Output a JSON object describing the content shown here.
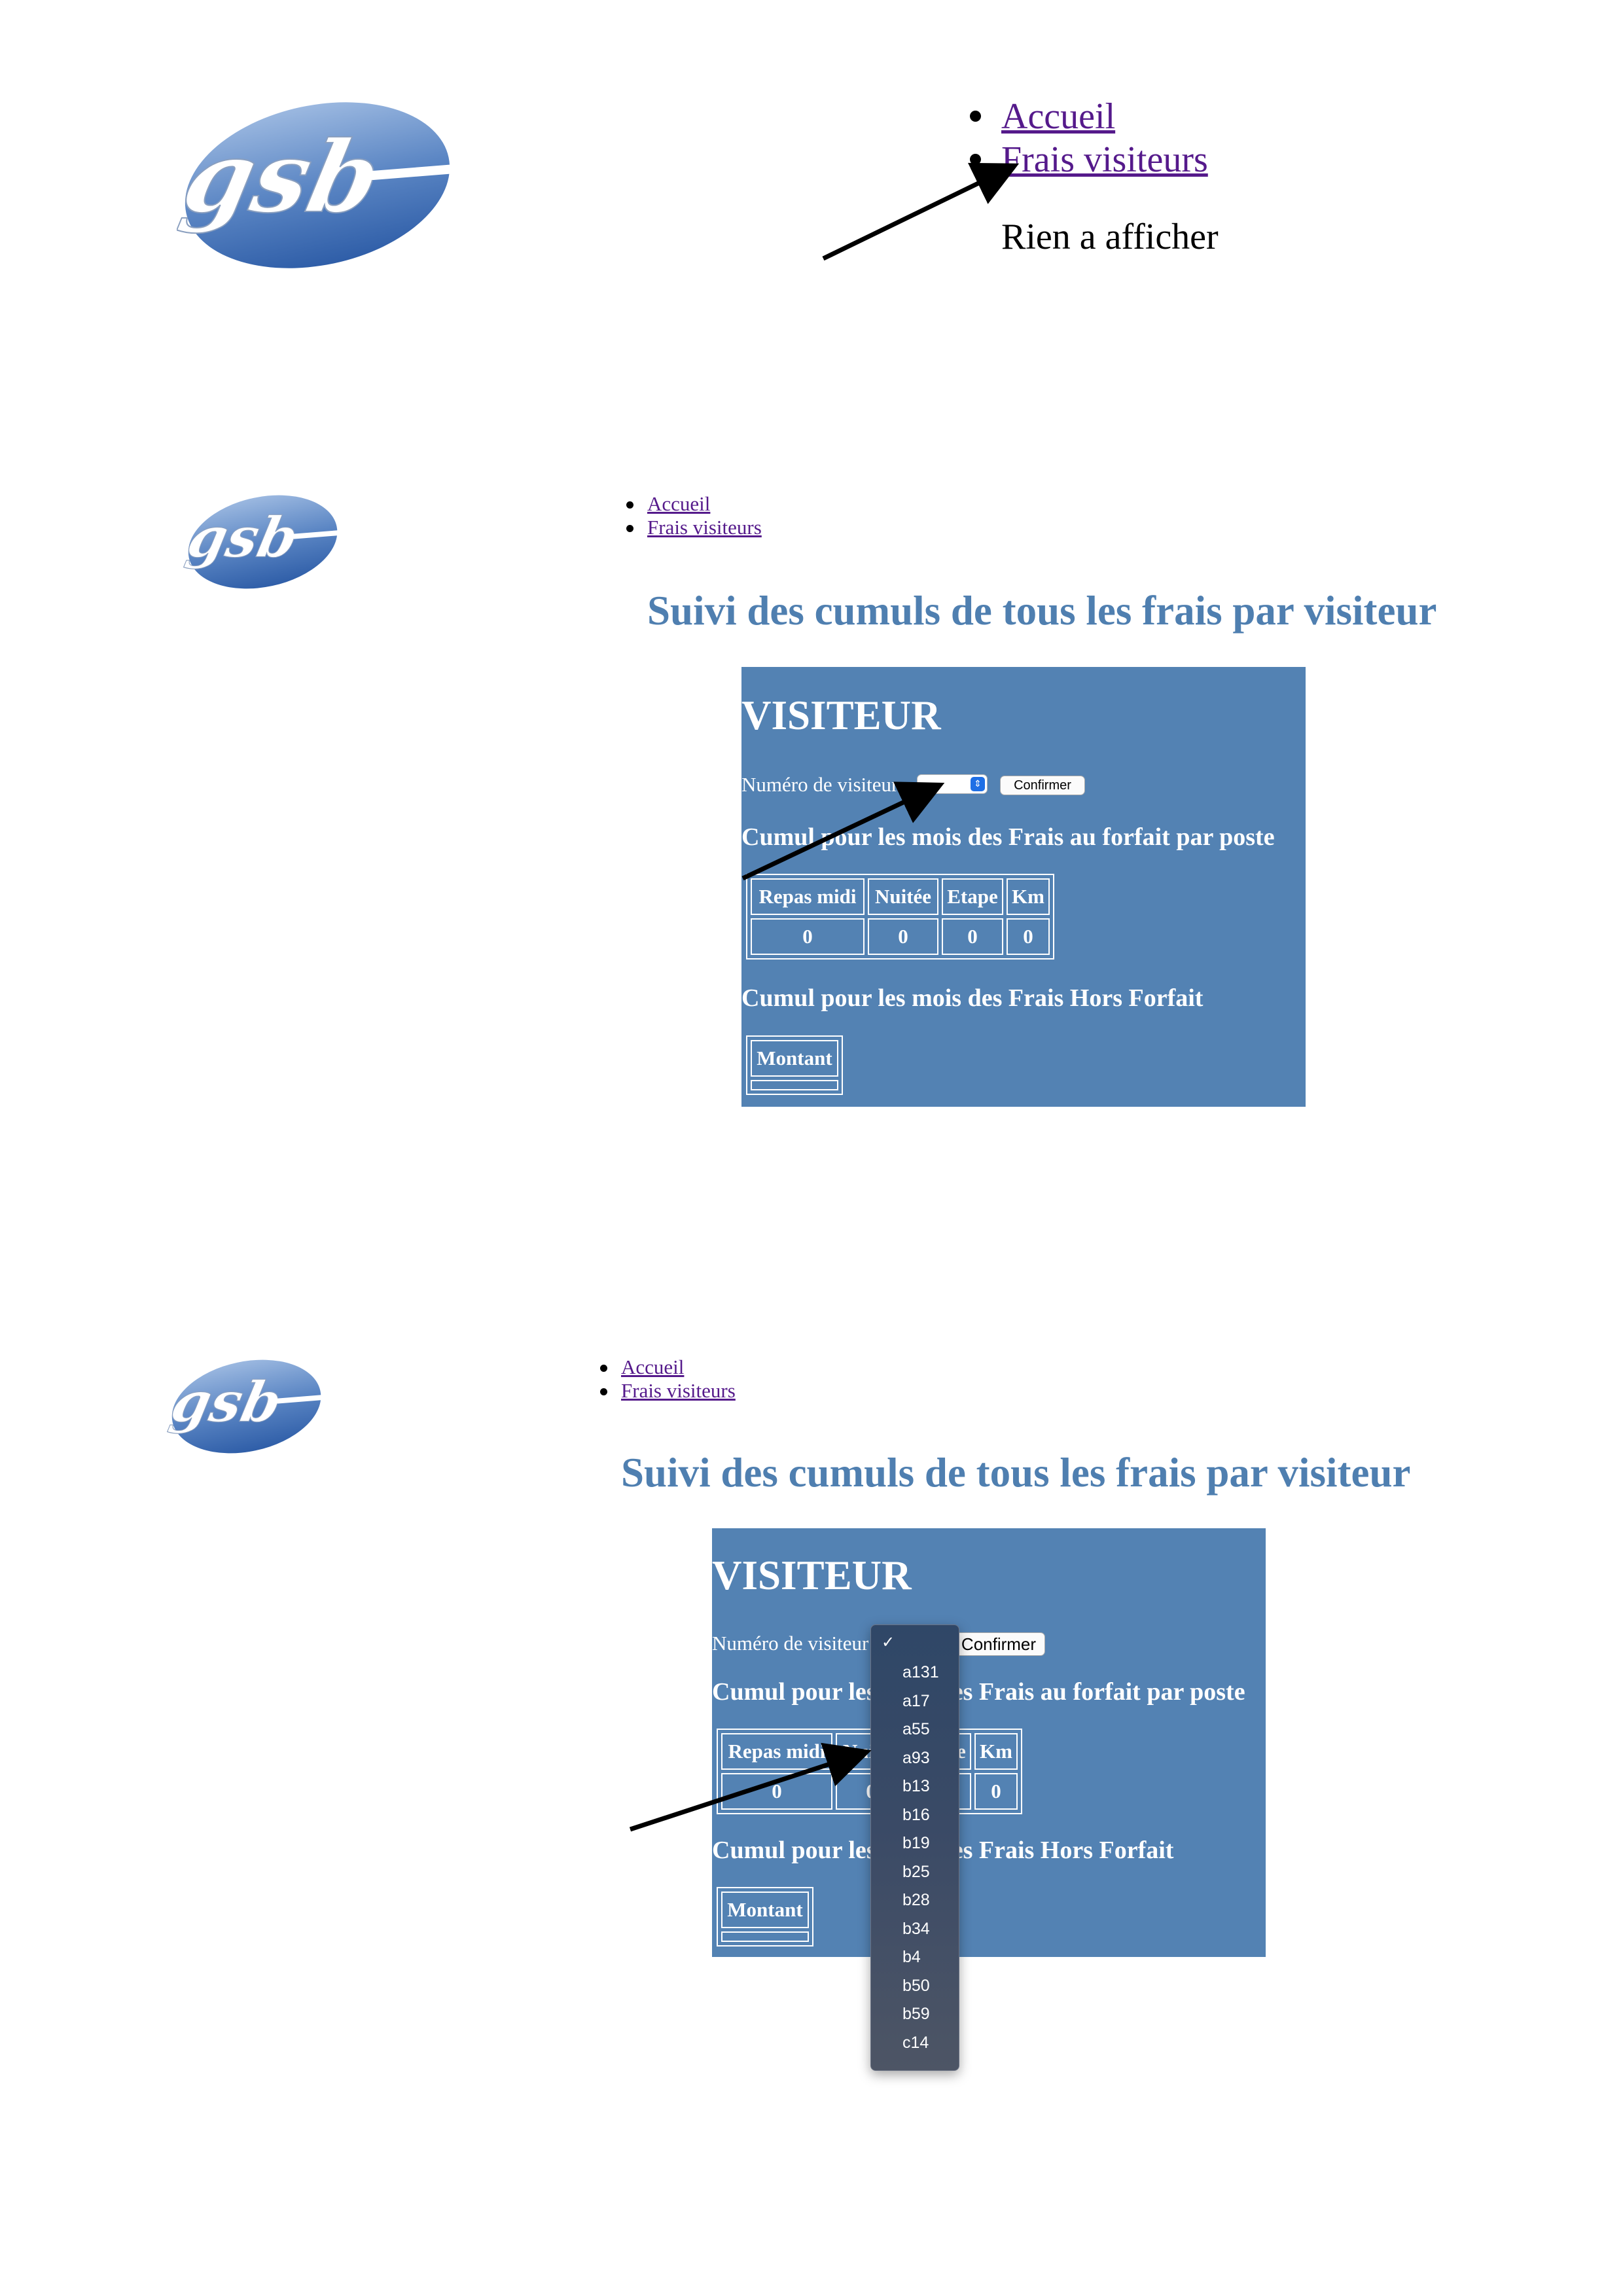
{
  "logo": {
    "text": "gsb"
  },
  "nav": {
    "home": "Accueil",
    "frais": "Frais visiteurs"
  },
  "screen1": {
    "empty_message": "Rien a afficher"
  },
  "page_title": "Suivi des cumuls de tous les frais par visiteur",
  "panel": {
    "heading": "VISITEUR",
    "visitor_label": "Numéro de visiteur",
    "confirm_label": "Confirmer",
    "forfait_heading": "Cumul pour les mois des Frais au forfait par poste",
    "forfait_headers": [
      "Repas midi",
      "Nuitée",
      "Etape",
      "Km"
    ],
    "forfait_values": [
      "0",
      "0",
      "0",
      "0"
    ],
    "horsforfait_heading": "Cumul pour les mois des Frais Hors Forfait",
    "horsforfait_header": "Montant"
  },
  "dropdown": {
    "check": "✓",
    "options": [
      "a131",
      "a17",
      "a55",
      "a93",
      "b13",
      "b16",
      "b19",
      "b25",
      "b28",
      "b34",
      "b4",
      "b50",
      "b59",
      "c14"
    ]
  },
  "colors": {
    "panel_bg": "#5382b3",
    "title": "#4f7fb0",
    "link": "#551a8b",
    "dropdown_bg": "#3a4a66"
  }
}
